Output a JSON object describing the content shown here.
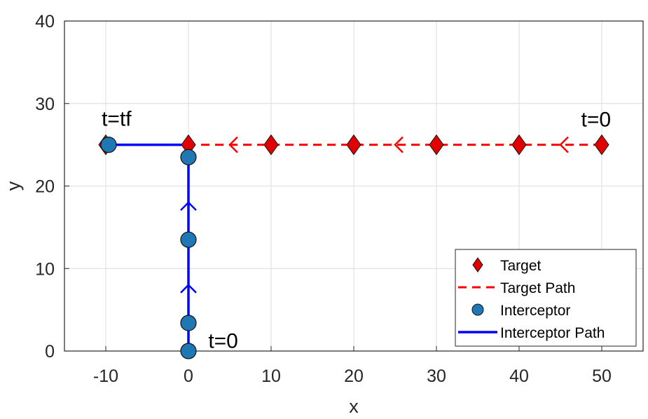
{
  "chart_data": {
    "type": "scatter",
    "title": "",
    "xlabel": "x",
    "ylabel": "y",
    "xlim": [
      -15,
      55
    ],
    "ylim": [
      0,
      40
    ],
    "x_ticks": [
      -10,
      0,
      10,
      20,
      30,
      40,
      50
    ],
    "y_ticks": [
      0,
      10,
      20,
      30,
      40
    ],
    "x_tick_labels": [
      "-10",
      "0",
      "10",
      "20",
      "30",
      "40",
      "50"
    ],
    "y_tick_labels": [
      "0",
      "10",
      "20",
      "30",
      "40"
    ],
    "grid": true,
    "legend_position": "bottom-right",
    "series": [
      {
        "name": "Target",
        "style": "diamond-markers",
        "color": "#e00000",
        "points": [
          [
            50,
            25
          ],
          [
            40,
            25
          ],
          [
            30,
            25
          ],
          [
            20,
            25
          ],
          [
            10,
            25
          ],
          [
            0,
            25
          ],
          [
            -10,
            25
          ]
        ]
      },
      {
        "name": "Target Path",
        "style": "dashed-line",
        "color": "#ff0000",
        "points": [
          [
            50,
            25
          ],
          [
            -10,
            25
          ]
        ],
        "direction_arrows_x": [
          45,
          25,
          5
        ]
      },
      {
        "name": "Interceptor",
        "style": "circle-markers",
        "color": "#1f77b4",
        "points": [
          [
            0,
            0
          ],
          [
            0,
            3.4
          ],
          [
            0,
            13.5
          ],
          [
            0,
            23.5
          ],
          [
            -10,
            25
          ]
        ]
      },
      {
        "name": "Interceptor Path",
        "style": "solid-line",
        "color": "#0000ff",
        "points": [
          [
            0,
            0
          ],
          [
            0,
            25
          ],
          [
            -10,
            25
          ]
        ],
        "direction_arrows_y": [
          8,
          18
        ]
      }
    ],
    "annotations": [
      {
        "text": "t=tf",
        "x": -10.5,
        "y": 27.3
      },
      {
        "text": "t=0",
        "x": 47.5,
        "y": 27.2
      },
      {
        "text": "t=0",
        "x": 2.4,
        "y": 0.4
      }
    ]
  }
}
